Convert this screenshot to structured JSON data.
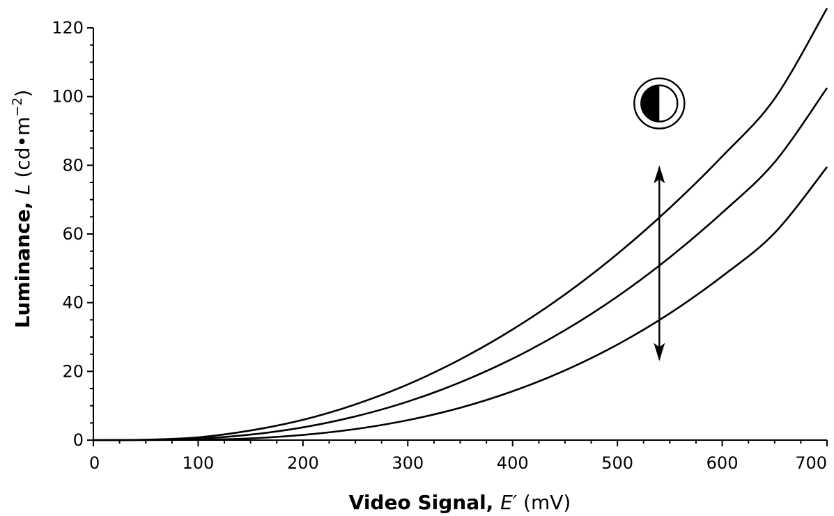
{
  "chart_data": {
    "type": "line",
    "title": "",
    "xlabel": {
      "bold": "Video Signal, ",
      "symbol": "E′",
      "unit": " (mV)"
    },
    "ylabel": {
      "bold": "Luminance, ",
      "symbol": "L",
      "unit_open": " (cd•m",
      "unit_exp": "−2",
      "unit_close": ")"
    },
    "xlim": [
      0,
      700
    ],
    "ylim": [
      0,
      120
    ],
    "xticks": [
      "0",
      "100",
      "200",
      "300",
      "400",
      "500",
      "600",
      "700"
    ],
    "yticks": [
      "0",
      "20",
      "40",
      "60",
      "80",
      "100",
      "120"
    ],
    "x": [
      0,
      50,
      100,
      150,
      200,
      250,
      300,
      350,
      400,
      450,
      500,
      550,
      600,
      650,
      700
    ],
    "series": [
      {
        "values": [
          0,
          0.1,
          0.8,
          2.8,
          5.9,
          10.4,
          16.2,
          23.5,
          32.2,
          42.4,
          54.2,
          67.6,
          82.6,
          99.4,
          125.7
        ]
      },
      {
        "values": [
          0,
          0.1,
          0.4,
          1.6,
          3.7,
          6.9,
          11.2,
          16.8,
          23.7,
          32.0,
          41.8,
          53.2,
          66.2,
          80.9,
          102.5
        ]
      },
      {
        "values": [
          0,
          0,
          0.1,
          0.5,
          1.5,
          3.2,
          5.8,
          9.4,
          14.2,
          20.3,
          27.8,
          36.9,
          47.7,
          60.3,
          79.5
        ]
      }
    ],
    "annotations": [
      {
        "type": "double-arrow",
        "x": 540,
        "y_from": 23,
        "y_to": 80
      },
      {
        "type": "contrast-icon",
        "icon": "half-filled-circle-icon",
        "x": 540,
        "y": 98
      }
    ],
    "grid": false,
    "legend": "none"
  }
}
